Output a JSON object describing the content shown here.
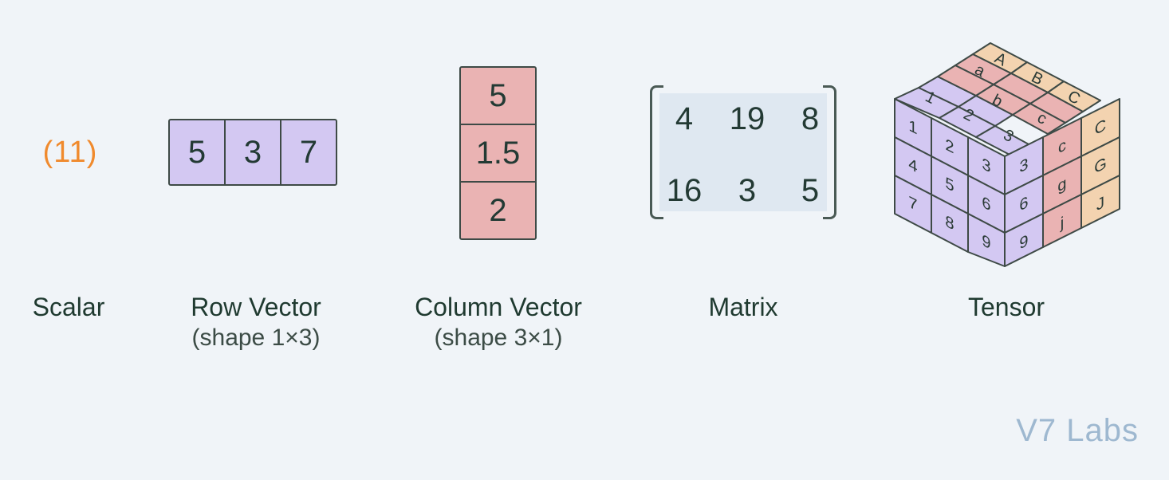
{
  "scalar": {
    "value": "(11)",
    "label": "Scalar"
  },
  "row_vector": {
    "values": [
      "5",
      "3",
      "7"
    ],
    "label": "Row Vector",
    "shape": "(shape 1×3)"
  },
  "column_vector": {
    "values": [
      "5",
      "1.5",
      "2"
    ],
    "label": "Column Vector",
    "shape": "(shape 3×1)"
  },
  "matrix": {
    "rows": [
      [
        "4",
        "19",
        "8"
      ],
      [
        "16",
        "3",
        "5"
      ]
    ],
    "label": "Matrix"
  },
  "tensor": {
    "label": "Tensor",
    "top_face": [
      [
        "A"
      ],
      [
        "a",
        "B"
      ],
      [
        "1",
        "b",
        "C"
      ],
      [
        "2",
        "c"
      ],
      [
        "3"
      ]
    ],
    "front_face": [
      [
        "1",
        "2",
        "3"
      ],
      [
        "4",
        "5",
        "6"
      ],
      [
        "7",
        "8",
        "9"
      ]
    ],
    "side_face": [
      [
        "3",
        "c",
        "C"
      ],
      [
        "6",
        "g",
        "G"
      ],
      [
        "9",
        "j",
        "J"
      ]
    ]
  },
  "watermark": "V7 Labs",
  "colors": {
    "scalar": "#f08a2d",
    "purple_cells": "#d3c8f2",
    "pink_cells": "#eab3b3",
    "peach_cells": "#f3d3b0",
    "matrix_fill": "#dfe8f1"
  }
}
